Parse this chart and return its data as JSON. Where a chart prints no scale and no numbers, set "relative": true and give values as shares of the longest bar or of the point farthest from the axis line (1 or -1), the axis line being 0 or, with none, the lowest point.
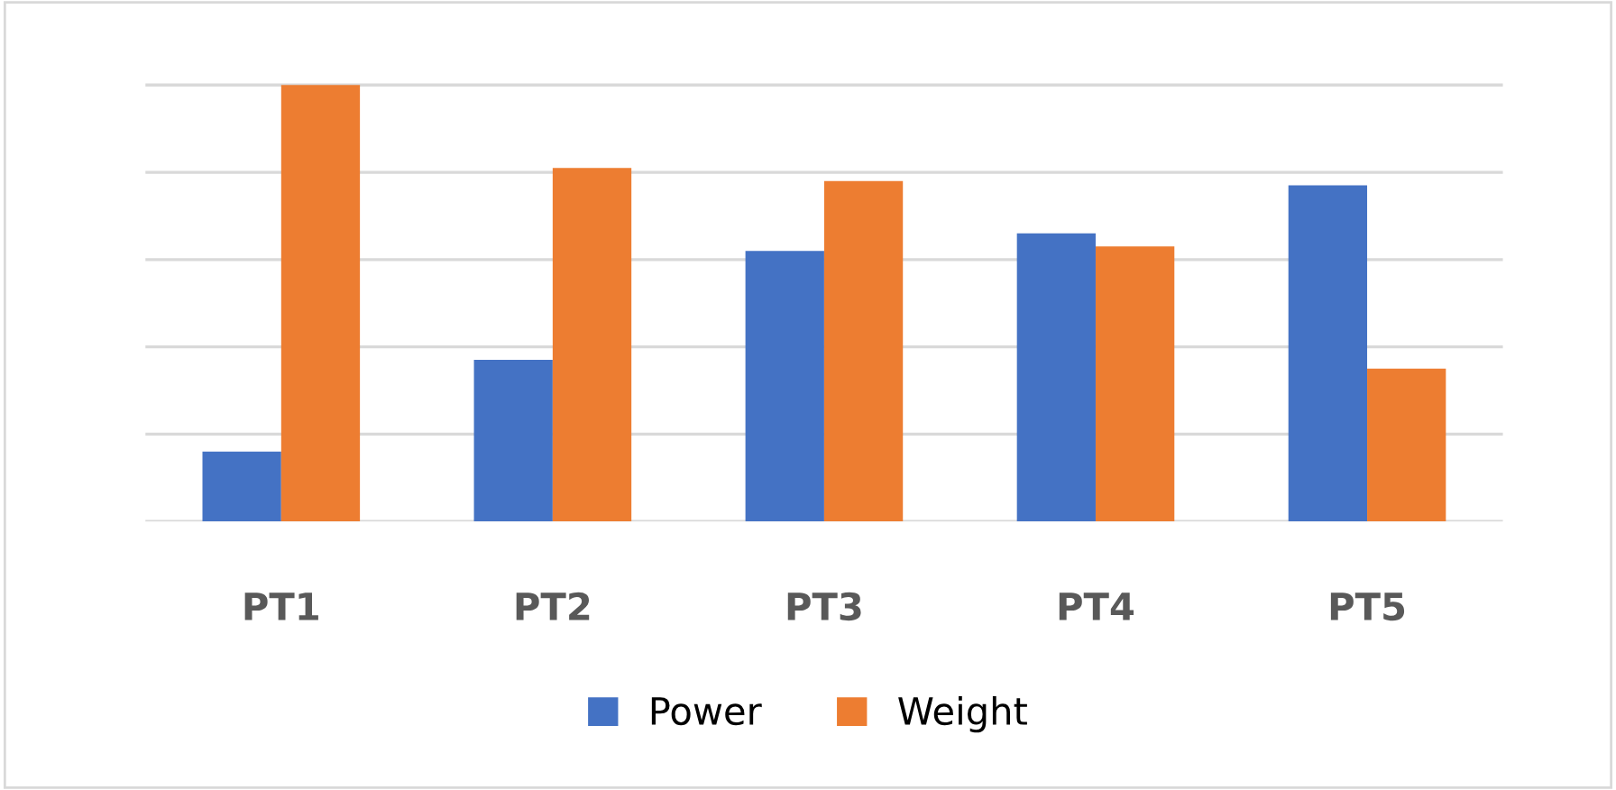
{
  "chart_data": {
    "type": "bar",
    "relative": true,
    "categories": [
      "PT1",
      "PT2",
      "PT3",
      "PT4",
      "PT5"
    ],
    "series": [
      {
        "name": "Power",
        "color": "#4472c4",
        "values": [
          0.16,
          0.37,
          0.62,
          0.66,
          0.77
        ]
      },
      {
        "name": "Weight",
        "color": "#ed7d31",
        "values": [
          1,
          0.81,
          0.78,
          0.63,
          0.35
        ]
      }
    ],
    "grid": "y",
    "legend": "bottom"
  }
}
